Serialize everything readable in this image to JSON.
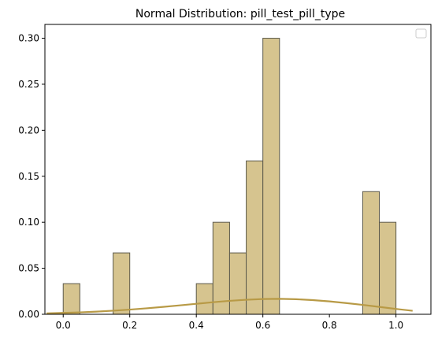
{
  "chart_data": {
    "type": "bar",
    "title": "Normal Distribution: pill_test_pill_type",
    "xlabel": "",
    "ylabel": "",
    "xlim": [
      -0.055,
      1.105
    ],
    "ylim": [
      0,
      0.315
    ],
    "x_ticks": [
      0.0,
      0.2,
      0.4,
      0.6,
      0.8,
      1.0
    ],
    "x_tick_labels": [
      "0.0",
      "0.2",
      "0.4",
      "0.6",
      "0.8",
      "1.0"
    ],
    "y_ticks": [
      0.0,
      0.05,
      0.1,
      0.15,
      0.2,
      0.25,
      0.3
    ],
    "y_tick_labels": [
      "0.00",
      "0.05",
      "0.10",
      "0.15",
      "0.20",
      "0.25",
      "0.30"
    ],
    "histogram": {
      "bin_width": 0.05,
      "bins": [
        {
          "x0": 0.0,
          "x1": 0.05,
          "value": 0.0333
        },
        {
          "x0": 0.15,
          "x1": 0.2,
          "value": 0.0667
        },
        {
          "x0": 0.4,
          "x1": 0.45,
          "value": 0.0333
        },
        {
          "x0": 0.45,
          "x1": 0.5,
          "value": 0.1
        },
        {
          "x0": 0.5,
          "x1": 0.55,
          "value": 0.0667
        },
        {
          "x0": 0.55,
          "x1": 0.6,
          "value": 0.1667
        },
        {
          "x0": 0.6,
          "x1": 0.65,
          "value": 0.3
        },
        {
          "x0": 0.9,
          "x1": 0.95,
          "value": 0.1333
        },
        {
          "x0": 0.95,
          "x1": 1.0,
          "value": 0.1
        }
      ]
    },
    "density_curve": {
      "x": [
        -0.05,
        0.0,
        0.05,
        0.1,
        0.15,
        0.2,
        0.25,
        0.3,
        0.35,
        0.4,
        0.45,
        0.5,
        0.55,
        0.6,
        0.65,
        0.7,
        0.75,
        0.8,
        0.85,
        0.9,
        0.95,
        1.0,
        1.05
      ],
      "y": [
        0.001,
        0.0015,
        0.0021,
        0.0029,
        0.0039,
        0.0051,
        0.0065,
        0.008,
        0.0097,
        0.0114,
        0.0131,
        0.0146,
        0.0158,
        0.0166,
        0.0168,
        0.0164,
        0.0154,
        0.014,
        0.0122,
        0.0102,
        0.008,
        0.0058,
        0.0038
      ]
    },
    "legend": {
      "placement": "top-right",
      "entries": []
    },
    "grid": false,
    "colors": {
      "bar_fill": "#d6c48f",
      "bar_edge": "#5c5a4c",
      "curve": "#b89a46",
      "axes": "#000000"
    }
  }
}
